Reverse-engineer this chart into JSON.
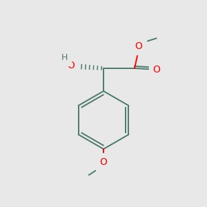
{
  "background_color": "#e8e8e8",
  "bond_color": "#4a7a6a",
  "oxygen_color": "#ff0000",
  "hydrogen_color": "#4a7a6a",
  "figsize": [
    3.0,
    3.0
  ],
  "dpi": 100,
  "xlim": [
    0,
    10
  ],
  "ylim": [
    0,
    10
  ]
}
